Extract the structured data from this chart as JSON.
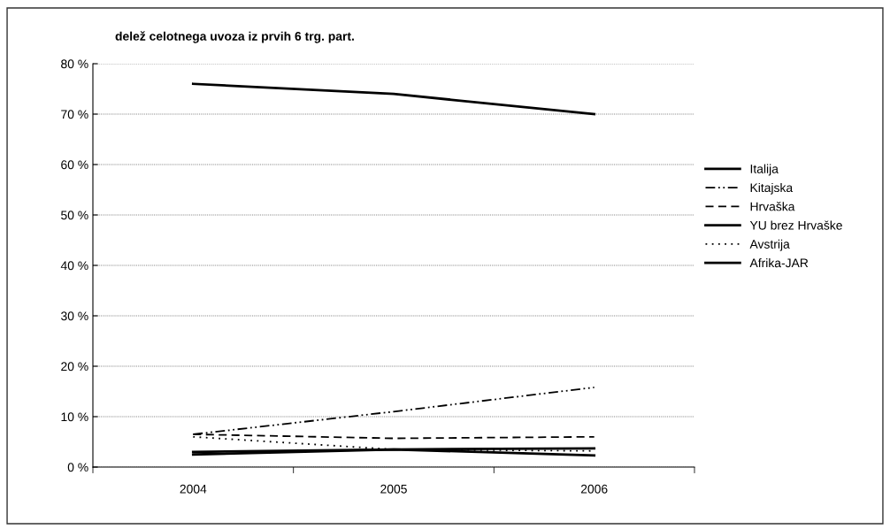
{
  "chart_data": {
    "type": "line",
    "title": "delež celotnega uvoza iz prvih 6 trg. part.",
    "categories": [
      "2004",
      "2005",
      "2006"
    ],
    "series": [
      {
        "name": "Italija",
        "color": "#000000",
        "line_style": "solid",
        "values": [
          76,
          74,
          70
        ]
      },
      {
        "name": "Kitajska",
        "color": "#000000",
        "line_style": "dashdot",
        "values": [
          6.5,
          11,
          15.8
        ]
      },
      {
        "name": "Hrvaška",
        "color": "#000000",
        "line_style": "dashed",
        "values": [
          6.5,
          5.7,
          6
        ]
      },
      {
        "name": "YU brez Hrvaške",
        "color": "#000000",
        "line_style": "solid",
        "values": [
          3,
          3.5,
          3.7
        ]
      },
      {
        "name": "Avstrija",
        "color": "#000000",
        "line_style": "dotted",
        "values": [
          6,
          3.5,
          3.2
        ]
      },
      {
        "name": "Afrika-JAR",
        "color": "#000000",
        "line_style": "solid",
        "values": [
          2.5,
          3.5,
          2.3
        ]
      }
    ],
    "ylim": [
      0,
      80
    ],
    "yticks": [
      {
        "value": 0,
        "label": "0 %"
      },
      {
        "value": 10,
        "label": "10 %"
      },
      {
        "value": 20,
        "label": "20 %"
      },
      {
        "value": 30,
        "label": "30 %"
      },
      {
        "value": 40,
        "label": "40 %"
      },
      {
        "value": 50,
        "label": "50 %"
      },
      {
        "value": 60,
        "label": "60 %"
      },
      {
        "value": 70,
        "label": "70 %"
      },
      {
        "value": 80,
        "label": "80 %"
      }
    ],
    "grid": "y",
    "legend": "right",
    "marker": "none"
  }
}
